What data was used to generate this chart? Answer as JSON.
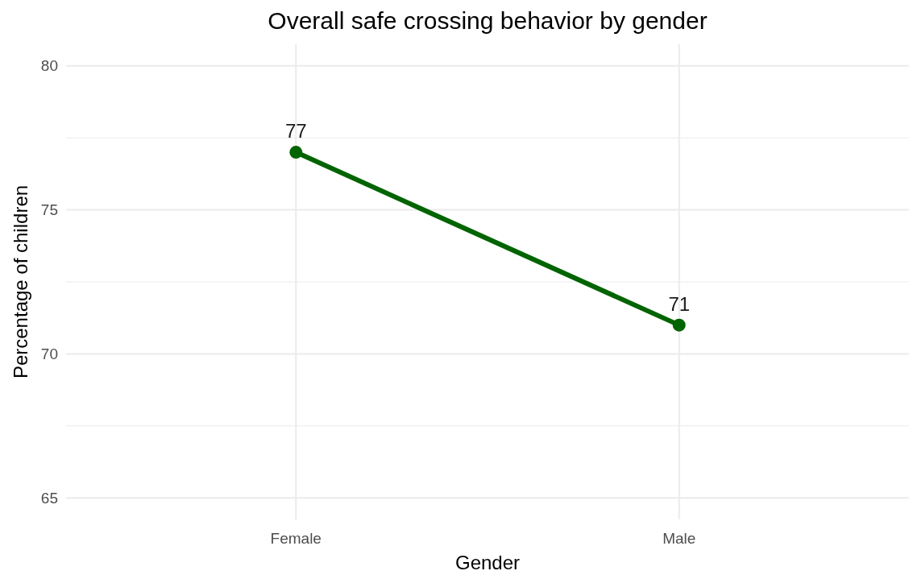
{
  "chart_data": {
    "type": "line",
    "title": "Overall safe crossing behavior by gender",
    "xlabel": "Gender",
    "ylabel": "Percentage of children",
    "categories": [
      "Female",
      "Male"
    ],
    "series": [
      {
        "color": "#006400",
        "values": [
          77,
          71
        ]
      }
    ],
    "ylim": [
      64.25,
      80.75
    ],
    "yticks": [
      65,
      {
        "value": 67.5,
        "label": null
      },
      70,
      {
        "value": 72.5,
        "label": null
      },
      75,
      {
        "value": 77.5,
        "label": null
      },
      80
    ],
    "grid": true,
    "marker": "circle",
    "data_labels": true
  }
}
